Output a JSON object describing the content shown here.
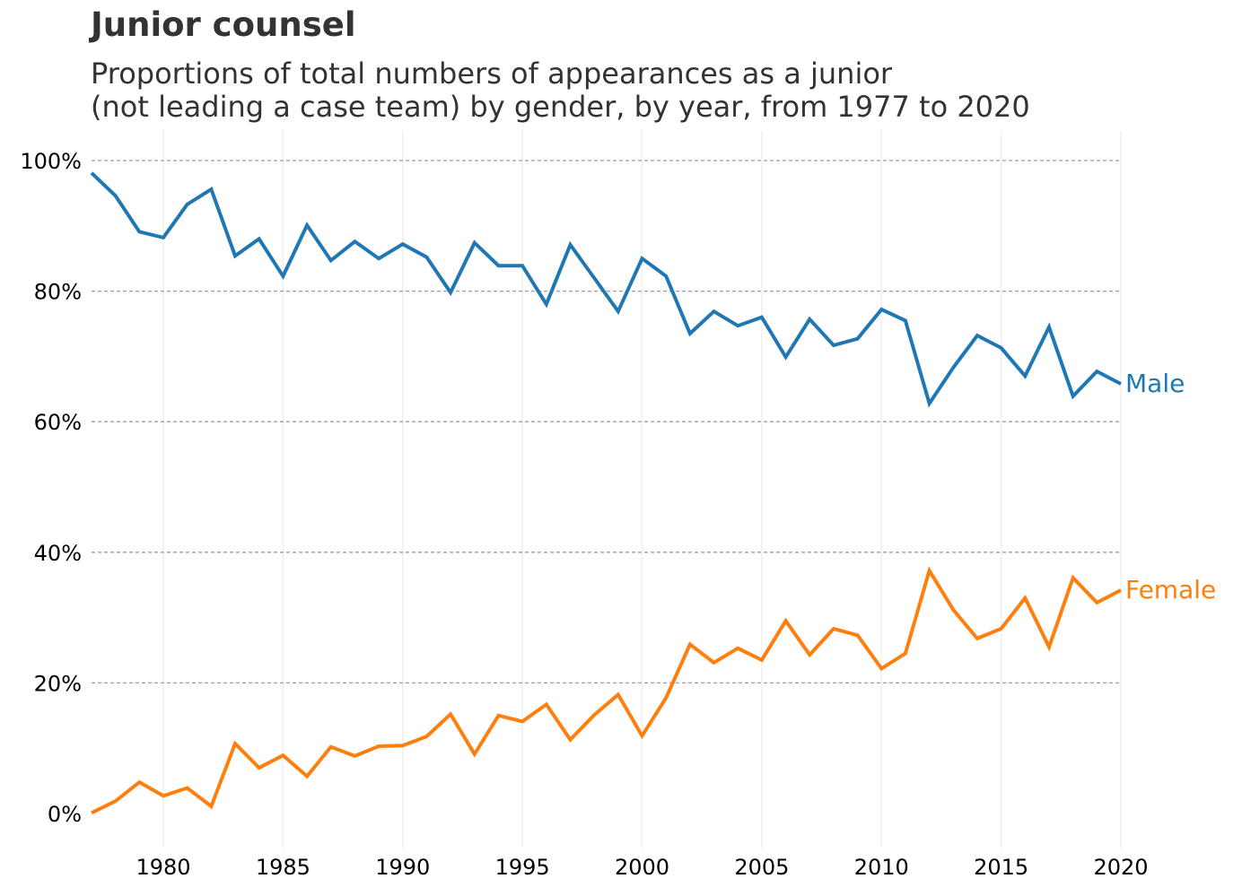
{
  "chart_data": {
    "type": "line",
    "title": "Junior counsel",
    "subtitle": "Proportions of total numbers of appearances as a junior\n(not leading a case team) by gender, by year, from 1977 to 2020",
    "xlabel": "",
    "ylabel": "",
    "x": [
      1977,
      1978,
      1979,
      1980,
      1981,
      1982,
      1983,
      1984,
      1985,
      1986,
      1987,
      1988,
      1989,
      1990,
      1991,
      1992,
      1993,
      1994,
      1995,
      1996,
      1997,
      1998,
      1999,
      2000,
      2001,
      2002,
      2003,
      2004,
      2005,
      2006,
      2007,
      2008,
      2009,
      2010,
      2011,
      2012,
      2013,
      2014,
      2015,
      2016,
      2017,
      2018,
      2019,
      2020
    ],
    "xlim": [
      1977,
      2020
    ],
    "ylim": [
      0,
      100
    ],
    "xticks": [
      1980,
      1985,
      1990,
      1995,
      2000,
      2005,
      2010,
      2015,
      2020
    ],
    "xtick_labels": [
      "1980",
      "1985",
      "1990",
      "1995",
      "2000",
      "2005",
      "2010",
      "2015",
      "2020"
    ],
    "yticks": [
      0,
      20,
      40,
      60,
      80,
      100
    ],
    "ytick_labels": [
      "0%",
      "20%",
      "40%",
      "60%",
      "80%",
      "100%"
    ],
    "grid": "horizontal dashed, vertical faint",
    "legend": "inline labels at line ends (right)",
    "series": [
      {
        "name": "Male",
        "color": "#1f77b4",
        "values": [
          98.1,
          94.6,
          89.1,
          88.2,
          93.3,
          95.6,
          85.4,
          88.0,
          82.3,
          90.1,
          84.7,
          87.6,
          85.0,
          87.2,
          85.2,
          79.8,
          87.4,
          83.9,
          83.9,
          78.0,
          87.1,
          82.0,
          76.9,
          85.0,
          82.3,
          73.5,
          76.9,
          74.7,
          76.0,
          69.9,
          75.7,
          71.7,
          72.7,
          77.2,
          75.5,
          62.8,
          68.3,
          73.2,
          71.3,
          67.0,
          74.5,
          63.9,
          67.7,
          65.8
        ]
      },
      {
        "name": "Female",
        "color": "#ff7f0e",
        "values": [
          0.1,
          1.9,
          4.8,
          2.7,
          3.9,
          1.1,
          10.7,
          7.0,
          8.9,
          5.7,
          10.2,
          8.8,
          10.3,
          10.4,
          11.8,
          15.2,
          9.1,
          15.0,
          14.1,
          16.7,
          11.3,
          15.1,
          18.2,
          11.9,
          17.7,
          25.9,
          23.1,
          25.3,
          23.5,
          29.5,
          24.3,
          28.3,
          27.3,
          22.2,
          24.5,
          37.2,
          31.2,
          26.8,
          28.3,
          33.0,
          25.5,
          36.1,
          32.3,
          34.2
        ]
      }
    ]
  }
}
